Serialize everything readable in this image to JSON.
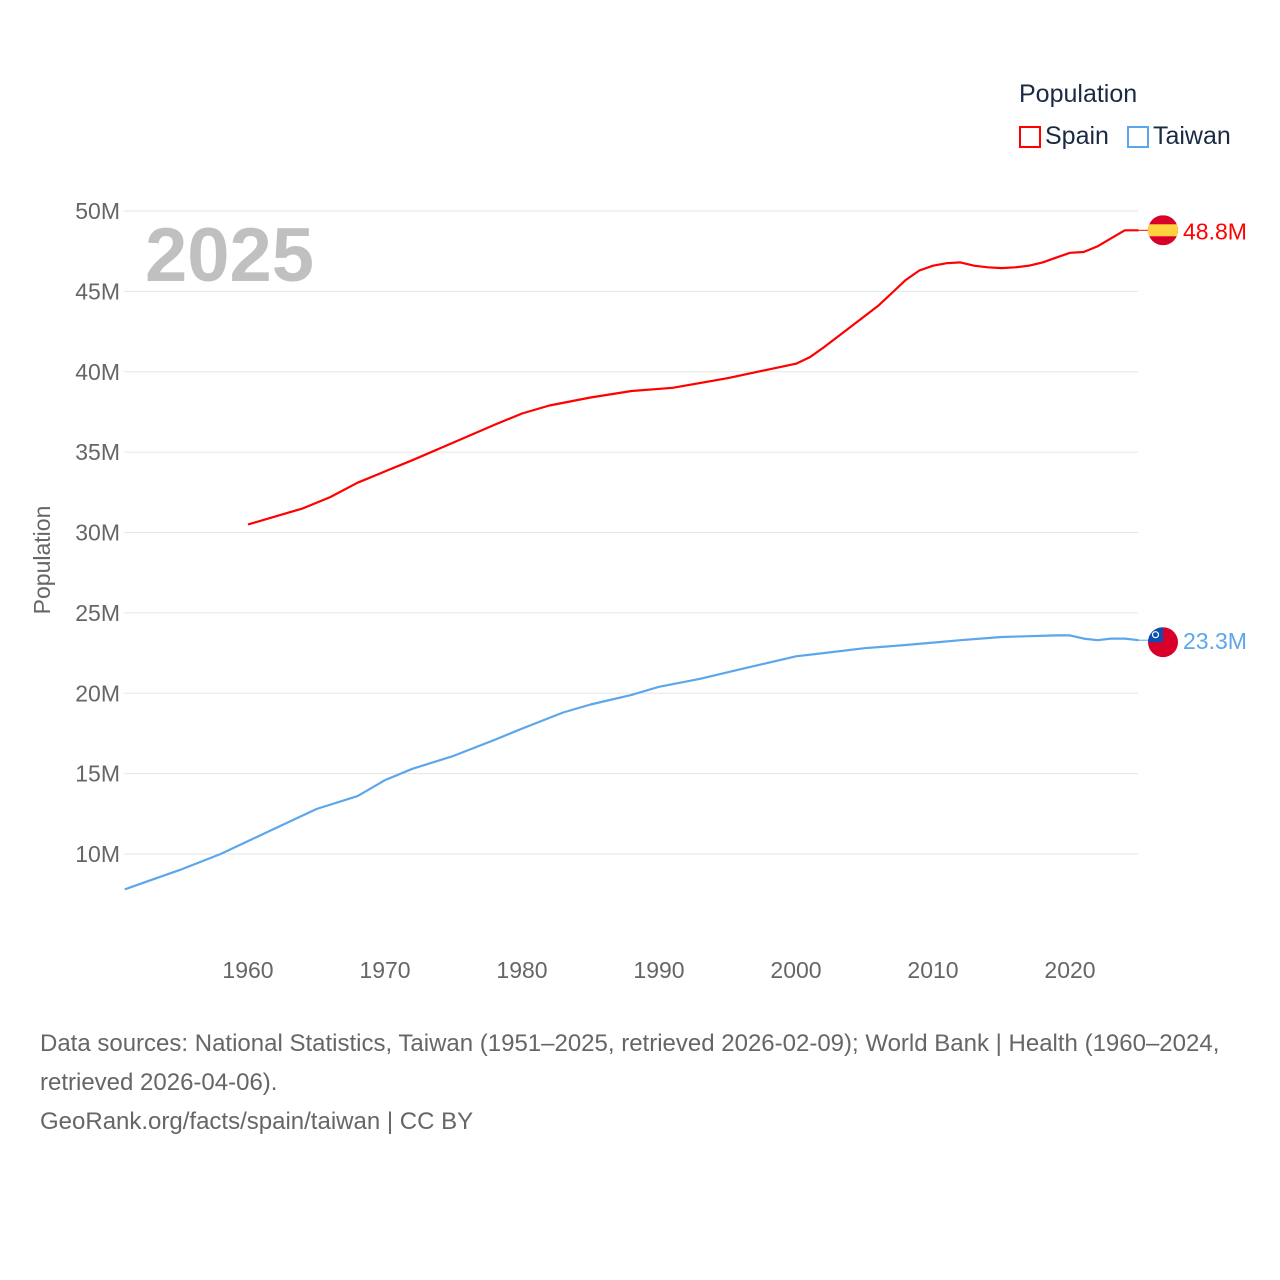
{
  "chart_data": {
    "type": "line",
    "title": "",
    "year_label": "2025",
    "ylabel": "Population",
    "xlabel": "",
    "xlim": [
      1951,
      2025
    ],
    "ylim": [
      5000000,
      52000000
    ],
    "x_ticks": [
      1960,
      1970,
      1980,
      1990,
      2000,
      2010,
      2020
    ],
    "y_ticks": [
      10000000,
      15000000,
      20000000,
      25000000,
      30000000,
      35000000,
      40000000,
      45000000,
      50000000
    ],
    "y_tick_labels": [
      "10M",
      "15M",
      "20M",
      "25M",
      "30M",
      "35M",
      "40M",
      "45M",
      "50M"
    ],
    "grid": true,
    "legend": {
      "title": "Population",
      "placement": "top-right"
    },
    "series": [
      {
        "name": "Spain",
        "color": "#ff0000",
        "end_label": "48.8M",
        "flag": "spain-flag",
        "x": [
          1960,
          1962,
          1964,
          1966,
          1968,
          1970,
          1972,
          1975,
          1978,
          1980,
          1982,
          1985,
          1988,
          1991,
          1995,
          2000,
          2001,
          2002,
          2004,
          2006,
          2007,
          2008,
          2009,
          2010,
          2011,
          2012,
          2013,
          2014,
          2015,
          2016,
          2017,
          2018,
          2019,
          2020,
          2021,
          2022,
          2023,
          2024,
          2025
        ],
        "y": [
          30.5,
          31.0,
          31.5,
          32.2,
          33.1,
          33.8,
          34.5,
          35.6,
          36.7,
          37.4,
          37.9,
          38.4,
          38.8,
          39.0,
          39.6,
          40.5,
          40.9,
          41.5,
          42.8,
          44.1,
          44.9,
          45.7,
          46.3,
          46.6,
          46.75,
          46.8,
          46.6,
          46.5,
          46.45,
          46.5,
          46.6,
          46.8,
          47.1,
          47.4,
          47.45,
          47.8,
          48.3,
          48.8,
          48.8
        ]
      },
      {
        "name": "Taiwan",
        "color": "#5ca6eb",
        "end_label": "23.3M",
        "flag": "taiwan-flag",
        "x": [
          1951,
          1953,
          1955,
          1958,
          1960,
          1962,
          1965,
          1968,
          1970,
          1972,
          1975,
          1978,
          1980,
          1983,
          1985,
          1988,
          1990,
          1993,
          1996,
          2000,
          2002,
          2005,
          2008,
          2010,
          2012,
          2015,
          2017,
          2019,
          2020,
          2021,
          2022,
          2023,
          2024,
          2025
        ],
        "y": [
          7.8,
          8.4,
          9.0,
          10.0,
          10.8,
          11.6,
          12.8,
          13.6,
          14.6,
          15.3,
          16.1,
          17.1,
          17.8,
          18.8,
          19.3,
          19.9,
          20.4,
          20.9,
          21.5,
          22.3,
          22.5,
          22.8,
          23.0,
          23.15,
          23.3,
          23.5,
          23.55,
          23.6,
          23.6,
          23.4,
          23.3,
          23.4,
          23.4,
          23.3
        ]
      }
    ],
    "footer": {
      "sources": "Data sources: National Statistics, Taiwan (1951–2025, retrieved 2026-02-09); World Bank | Health (1960–2024, retrieved 2026-04-06).",
      "attribution": "GeoRank.org/facts/spain/taiwan | CC BY"
    }
  }
}
